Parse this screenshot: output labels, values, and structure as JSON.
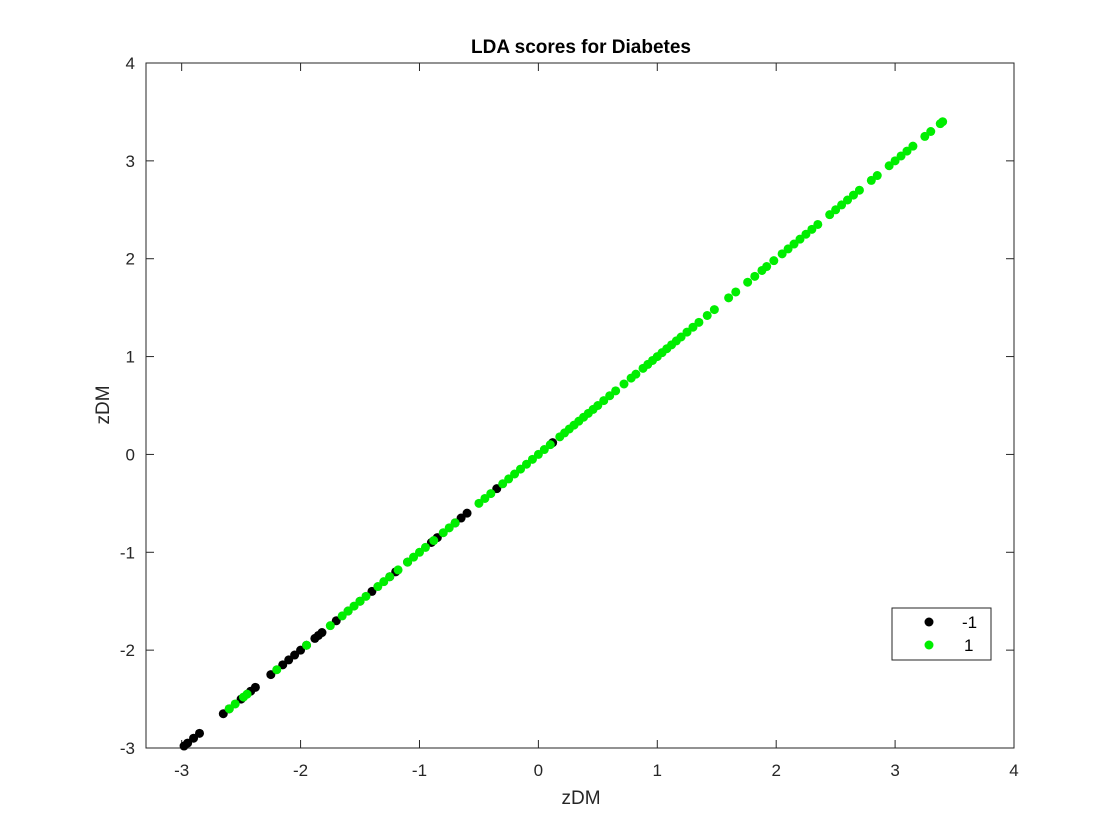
{
  "chart_data": {
    "type": "scatter",
    "title": "LDA scores for Diabetes",
    "xlabel": "zDM",
    "ylabel": "zDM",
    "xlim": [
      -3.3,
      4
    ],
    "ylim": [
      -3,
      4
    ],
    "x_ticks": [
      -3,
      -2,
      -1,
      0,
      1,
      2,
      3,
      4
    ],
    "y_ticks": [
      -3,
      -2,
      -1,
      0,
      1,
      2,
      3,
      4
    ],
    "x_tick_labels": [
      "-3",
      "-2",
      "-1",
      "0",
      "1",
      "2",
      "3",
      "4"
    ],
    "y_tick_labels": [
      "-3",
      "-2",
      "-1",
      "0",
      "1",
      "2",
      "3",
      "4"
    ],
    "grid": false,
    "legend_position": "bottom-right",
    "series": [
      {
        "name": "-1",
        "color": "#000000",
        "x": [
          -2.98,
          -2.95,
          -2.9,
          -2.85,
          -2.65,
          -2.6,
          -2.5,
          -2.42,
          -2.38,
          -2.25,
          -2.15,
          -2.1,
          -2.05,
          -2.0,
          -1.95,
          -1.88,
          -1.85,
          -1.82,
          -1.7,
          -1.6,
          -1.5,
          -1.4,
          -1.25,
          -1.2,
          -1.1,
          -0.9,
          -0.85,
          -0.7,
          -0.65,
          -0.6,
          -0.35,
          0.12
        ],
        "y": [
          -2.98,
          -2.95,
          -2.9,
          -2.85,
          -2.65,
          -2.6,
          -2.5,
          -2.42,
          -2.38,
          -2.25,
          -2.15,
          -2.1,
          -2.05,
          -2.0,
          -1.95,
          -1.88,
          -1.85,
          -1.82,
          -1.7,
          -1.6,
          -1.5,
          -1.4,
          -1.25,
          -1.2,
          -1.1,
          -0.9,
          -0.85,
          -0.7,
          -0.65,
          -0.6,
          -0.35,
          0.12
        ]
      },
      {
        "name": "1",
        "color": "#00ee00",
        "x": [
          -2.6,
          -2.55,
          -2.48,
          -2.45,
          -2.2,
          -1.95,
          -1.75,
          -1.65,
          -1.6,
          -1.55,
          -1.5,
          -1.45,
          -1.35,
          -1.3,
          -1.25,
          -1.18,
          -1.1,
          -1.05,
          -1.0,
          -0.95,
          -0.88,
          -0.8,
          -0.75,
          -0.7,
          -0.5,
          -0.45,
          -0.4,
          -0.3,
          -0.25,
          -0.2,
          -0.15,
          -0.1,
          -0.05,
          0.0,
          0.05,
          0.1,
          0.18,
          0.22,
          0.26,
          0.3,
          0.34,
          0.38,
          0.42,
          0.46,
          0.5,
          0.55,
          0.6,
          0.65,
          0.72,
          0.78,
          0.82,
          0.88,
          0.92,
          0.96,
          1.0,
          1.04,
          1.08,
          1.12,
          1.16,
          1.2,
          1.25,
          1.3,
          1.35,
          1.42,
          1.48,
          1.6,
          1.66,
          1.76,
          1.82,
          1.88,
          1.92,
          1.98,
          2.05,
          2.1,
          2.15,
          2.2,
          2.25,
          2.3,
          2.35,
          2.45,
          2.5,
          2.55,
          2.6,
          2.65,
          2.7,
          2.8,
          2.85,
          2.95,
          3.0,
          3.05,
          3.1,
          3.15,
          3.25,
          3.3,
          3.38,
          3.4
        ],
        "y": [
          -2.6,
          -2.55,
          -2.48,
          -2.45,
          -2.2,
          -1.95,
          -1.75,
          -1.65,
          -1.6,
          -1.55,
          -1.5,
          -1.45,
          -1.35,
          -1.3,
          -1.25,
          -1.18,
          -1.1,
          -1.05,
          -1.0,
          -0.95,
          -0.88,
          -0.8,
          -0.75,
          -0.7,
          -0.5,
          -0.45,
          -0.4,
          -0.3,
          -0.25,
          -0.2,
          -0.15,
          -0.1,
          -0.05,
          0.0,
          0.05,
          0.1,
          0.18,
          0.22,
          0.26,
          0.3,
          0.34,
          0.38,
          0.42,
          0.46,
          0.5,
          0.55,
          0.6,
          0.65,
          0.72,
          0.78,
          0.82,
          0.88,
          0.92,
          0.96,
          1.0,
          1.04,
          1.08,
          1.12,
          1.16,
          1.2,
          1.25,
          1.3,
          1.35,
          1.42,
          1.48,
          1.6,
          1.66,
          1.76,
          1.82,
          1.88,
          1.92,
          1.98,
          2.05,
          2.1,
          2.15,
          2.2,
          2.25,
          2.3,
          2.35,
          2.45,
          2.5,
          2.55,
          2.6,
          2.65,
          2.7,
          2.8,
          2.85,
          2.95,
          3.0,
          3.05,
          3.1,
          3.15,
          3.25,
          3.3,
          3.38,
          3.4
        ]
      }
    ]
  }
}
